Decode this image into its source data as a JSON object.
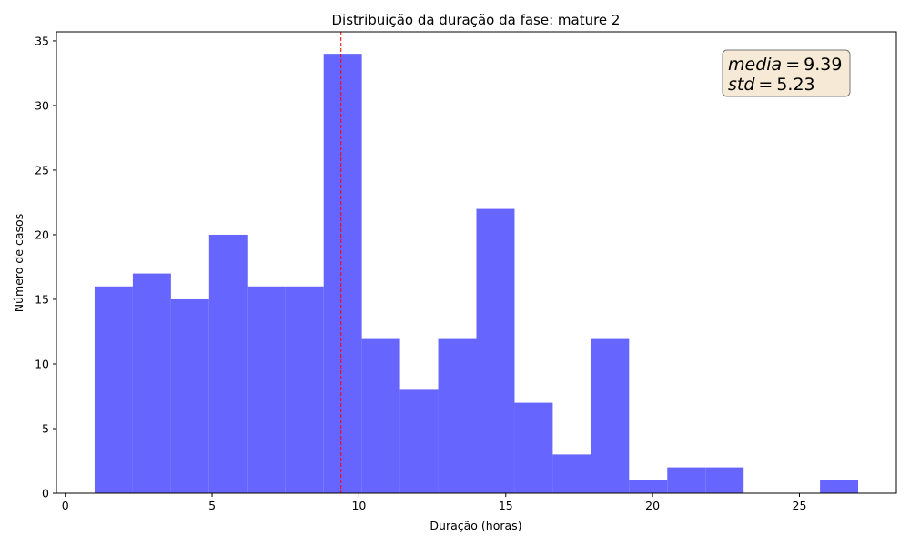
{
  "chart_data": {
    "type": "bar",
    "title": "Distribuição da duração da fase: mature 2",
    "xlabel": "Duração (horas)",
    "ylabel": "Número de casos",
    "xlim": [
      -0.3,
      28.3
    ],
    "ylim": [
      0,
      35.7
    ],
    "xticks": [
      0,
      5,
      10,
      15,
      20,
      25
    ],
    "yticks": [
      0,
      5,
      10,
      15,
      20,
      25,
      30,
      35
    ],
    "bin_edges": [
      1.0,
      2.3,
      3.6,
      4.9,
      6.2,
      7.5,
      8.8,
      10.1,
      11.4,
      12.7,
      14.0,
      15.3,
      16.6,
      17.9,
      19.2,
      20.5,
      21.8,
      23.1,
      24.4,
      25.7,
      27.0
    ],
    "counts": [
      16,
      17,
      15,
      20,
      16,
      16,
      34,
      12,
      8,
      12,
      22,
      7,
      3,
      12,
      1,
      2,
      2,
      0,
      0,
      1
    ],
    "bar_color": "#6666ff",
    "mean_line": {
      "x": 9.39,
      "color": "#ff0000",
      "style": "dashed"
    },
    "stats_box": {
      "mean_label": "media",
      "mean_value": "9.39",
      "std_label": "std",
      "std_value": "5.23",
      "placement": "top-right",
      "background": "#f6ead6",
      "border": "#777777"
    },
    "grid": false,
    "legend": "none"
  }
}
